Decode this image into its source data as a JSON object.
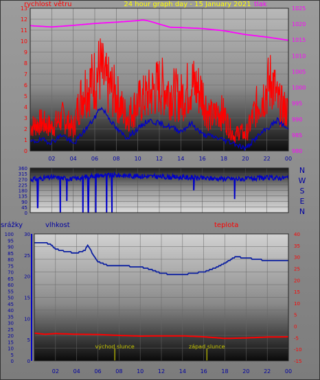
{
  "chart_data": [
    {
      "type": "line",
      "title": "24 hour graph day - 15 January 2021",
      "left_axis_label": "rychlost větru",
      "right_axis_label": "tlak",
      "x_ticks": [
        "02",
        "04",
        "06",
        "08",
        "10",
        "12",
        "14",
        "16",
        "18",
        "20",
        "22",
        "00"
      ],
      "left_ticks": [
        "0",
        "1",
        "2",
        "3",
        "4",
        "5",
        "6",
        "7",
        "8",
        "9",
        "10",
        "11",
        "12",
        "13"
      ],
      "right_ticks": [
        "980",
        "985",
        "990",
        "995",
        "1000",
        "1005",
        "1010",
        "1015",
        "1020",
        "1025"
      ],
      "ylim_left": [
        0,
        13
      ],
      "ylim_right": [
        980,
        1025
      ],
      "colors": {
        "wind_gust": "#ff0000",
        "wind_avg": "#0000c8",
        "pressure": "#ff00ff"
      },
      "series": [
        {
          "axis": "right",
          "x": [
            0,
            2,
            4,
            6,
            8,
            10,
            10.5,
            11,
            12,
            13,
            14,
            16,
            18,
            20,
            22,
            24
          ],
          "values": [
            1019.5,
            1019.1,
            1019.6,
            1020.2,
            1020.6,
            1021.1,
            1021.3,
            1021.0,
            1020.0,
            1019.0,
            1018.9,
            1018.6,
            1017.9,
            1016.7,
            1015.9,
            1014.9
          ]
        },
        {
          "x": [
            0,
            1,
            2,
            3,
            3.5,
            4,
            4.5,
            5,
            5.5,
            6,
            6.5,
            7,
            7.5,
            8,
            8.5,
            9,
            10,
            11,
            12,
            13,
            14,
            15,
            16,
            16.5,
            17,
            17.5,
            18,
            18.5,
            19,
            19.5,
            20,
            21,
            21.5,
            22,
            22.5,
            23,
            24
          ],
          "values": [
            2.5,
            3.0,
            2.5,
            3.5,
            3.0,
            2.2,
            4.8,
            6.5,
            6.8,
            7.5,
            8.5,
            7.0,
            6.5,
            5.8,
            4.5,
            3.5,
            5.0,
            5.8,
            6.8,
            6.2,
            5.5,
            7.0,
            6.0,
            4.0,
            3.5,
            4.2,
            3.8,
            2.5,
            1.5,
            2.2,
            1.5,
            4.5,
            5.5,
            6.5,
            7.5,
            5.0,
            4.0
          ]
        },
        {
          "x": [
            0,
            1,
            2,
            3,
            4,
            5,
            6,
            6.5,
            7,
            8,
            9,
            10,
            11,
            12,
            13,
            14,
            15,
            16,
            17,
            18,
            19,
            20,
            21,
            22,
            23,
            24
          ],
          "values": [
            0.8,
            1.0,
            0.8,
            1.5,
            0.6,
            1.8,
            3.0,
            4.0,
            3.5,
            2.0,
            1.2,
            2.0,
            2.8,
            2.5,
            2.2,
            1.8,
            2.5,
            1.5,
            1.3,
            1.0,
            0.7,
            0.2,
            1.2,
            2.0,
            2.8,
            1.9
          ]
        }
      ]
    },
    {
      "type": "line",
      "left_ticks": [
        "0",
        "45",
        "90",
        "135",
        "180",
        "225",
        "270",
        "315",
        "360"
      ],
      "compass_labels": [
        "N",
        "W",
        "S",
        "E",
        "N"
      ],
      "ylim": [
        0,
        360
      ],
      "colors": {
        "direction": "#0000c8"
      },
      "series": [
        {
          "x": [
            0,
            2,
            4,
            6,
            8,
            10,
            12,
            14,
            16,
            18,
            20,
            22,
            24
          ],
          "values": [
            268,
            285,
            272,
            300,
            302,
            295,
            290,
            285,
            278,
            275,
            272,
            280,
            282
          ]
        }
      ],
      "drops": [
        {
          "x": 0.7,
          "value": 40
        },
        {
          "x": 2.8,
          "value": 0
        },
        {
          "x": 3.4,
          "value": 95
        },
        {
          "x": 4.9,
          "value": 0
        },
        {
          "x": 5.4,
          "value": 0
        },
        {
          "x": 6.1,
          "value": 0
        },
        {
          "x": 7.1,
          "value": 0
        },
        {
          "x": 7.6,
          "value": 0
        },
        {
          "x": 15.2,
          "value": 180
        },
        {
          "x": 19.0,
          "value": 110
        }
      ]
    },
    {
      "type": "line",
      "left_axis_label": "srážky",
      "mid_axis_label": "vlhkost",
      "right_axis_label": "teplota",
      "x_ticks": [
        "02",
        "04",
        "06",
        "08",
        "10",
        "12",
        "14",
        "16",
        "18",
        "20",
        "22",
        "00"
      ],
      "left_ticks": [
        "0",
        "5",
        "10",
        "15",
        "20",
        "25",
        "30",
        "35",
        "40",
        "45",
        "50",
        "55",
        "60",
        "65",
        "70",
        "75",
        "80",
        "85",
        "90",
        "95",
        "100"
      ],
      "mid_ticks": [
        "0",
        "5",
        "10",
        "15",
        "20",
        "25",
        "30"
      ],
      "right_ticks": [
        "-15",
        "-10",
        "-5",
        "0",
        "5",
        "10",
        "15",
        "20",
        "25",
        "30",
        "35",
        "40"
      ],
      "ylim_left": [
        0,
        100
      ],
      "ylim_mid": [
        0,
        30
      ],
      "ylim_right": [
        -15,
        40
      ],
      "colors": {
        "humidity": "#0a1ea0",
        "temperature": "#ff0000",
        "sun": "#c8c800"
      },
      "series": [
        {
          "axis": "left",
          "x": [
            0,
            1,
            1.5,
            2,
            3,
            4,
            4.8,
            5,
            5.4,
            6,
            7,
            8,
            10,
            11,
            12,
            13,
            14,
            15,
            16,
            17,
            18,
            19,
            20,
            21,
            22,
            24
          ],
          "values": [
            93,
            93,
            92,
            88,
            86,
            85,
            87,
            91,
            86,
            78,
            75,
            75,
            74,
            72,
            69,
            68,
            68,
            69,
            70,
            73,
            77,
            82,
            81,
            80,
            79,
            79
          ]
        },
        {
          "axis": "right",
          "x": [
            0,
            1,
            2,
            4,
            6,
            8,
            10,
            12,
            14,
            16,
            18,
            20,
            22,
            24
          ],
          "values": [
            -3.0,
            -3.5,
            -3.2,
            -3.5,
            -3.6,
            -4.0,
            -4.3,
            -4.2,
            -4.2,
            -4.6,
            -5.3,
            -5.1,
            -4.7,
            -4.6
          ]
        }
      ],
      "sun_events": [
        {
          "x": 7.6,
          "label": "východ slunce"
        },
        {
          "x": 16.3,
          "label": "západ slunce"
        }
      ]
    }
  ]
}
